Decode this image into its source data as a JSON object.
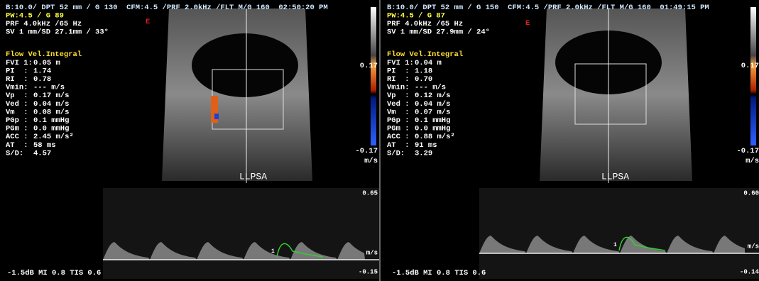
{
  "panels": [
    {
      "header": [
        "B:10.0/ DPT 52 mm / G 130  CFM:4.5 /PRF 2.0kHz /FLT M/G 160  02:50:20 PM",
        "PW:4.5 / G 89",
        "PRF 4.0kHz /65 Hz",
        "SV 1 mm/SD 27.1mm / 33°"
      ],
      "marker": "E",
      "section_title": "Flow Vel.Integral",
      "measurements": {
        "labels": [
          "FVI 1:",
          "PI  :",
          "RI  :",
          "Vmin:",
          "Vp  :",
          "Ved :",
          "Vm  :",
          "PGp :",
          "PGm :",
          "ACC :",
          "AT  :",
          "S/D:"
        ],
        "values": [
          "0.05 m",
          "1.74",
          "0.78",
          "--- m/s",
          "0.17 m/s",
          "0.04 m/s",
          "0.08 m/s",
          "0.1 mmHg",
          "0.0 mmHg",
          "2.45 m/s²",
          "58 ms",
          "4.57"
        ]
      },
      "color_scale": {
        "top": "0.17",
        "bottom": "-0.17",
        "unit": "m/s"
      },
      "image_label": "LLPSA",
      "doppler_scale": {
        "top": "0.65",
        "unit": "m/s",
        "bottom": "-0.15"
      },
      "cursor_label": "1",
      "footer": "-1.5dB MI 0.8 TIS 0.6"
    },
    {
      "header": [
        "B:10.0/ DPT 52 mm / G 150  CFM:4.5 /PRF 2.0kHz /FLT M/G 160  01:49:15 PM",
        "PW:4.5 / G 87",
        "PRF 4.0kHz /65 Hz",
        "SV 1 mm/SD 27.9mm / 24°"
      ],
      "marker": "E",
      "section_title": "Flow Vel.Integral",
      "measurements": {
        "labels": [
          "FVI 1:",
          "PI  :",
          "RI  :",
          "Vmin:",
          "Vp  :",
          "Ved :",
          "Vm  :",
          "PGp :",
          "PGm :",
          "ACC :",
          "AT  :",
          "S/D:"
        ],
        "values": [
          "0.04 m",
          "1.18",
          "0.70",
          "--- m/s",
          "0.12 m/s",
          "0.04 m/s",
          "0.07 m/s",
          "0.1 mmHg",
          "0.0 mmHg",
          "0.88 m/s²",
          "91 ms",
          "3.29"
        ]
      },
      "color_scale": {
        "top": "0.17",
        "bottom": "-0.17",
        "unit": "m/s"
      },
      "image_label": "LLPSA",
      "doppler_scale": {
        "top": "0.60",
        "unit": "m/s",
        "bottom": "-0.14"
      },
      "cursor_label": "1",
      "footer": "-1.5dB MI 0.8 TIS 0.6"
    }
  ]
}
